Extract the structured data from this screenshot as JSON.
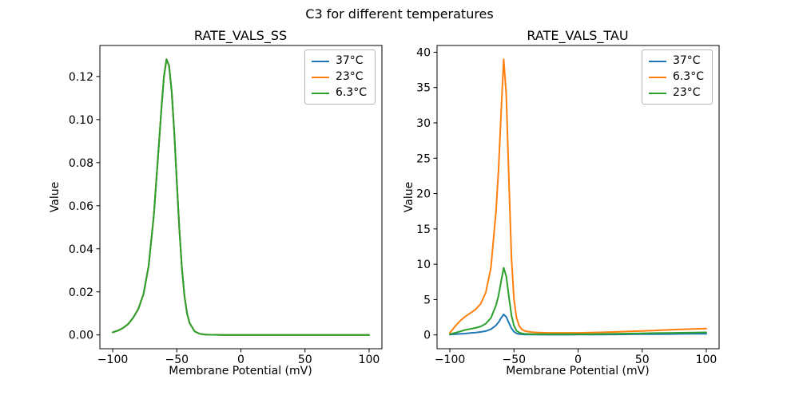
{
  "figure": {
    "title": "C3 for different temperatures"
  },
  "chart_data": [
    {
      "type": "line",
      "title": "RATE_VALS_SS",
      "xlabel": "Membrane Potential (mV)",
      "ylabel": "Value",
      "xlim": [
        -110,
        110
      ],
      "ylim": [
        -0.0064,
        0.1344
      ],
      "xticks": [
        -100,
        -50,
        0,
        50,
        100
      ],
      "xtick_labels": [
        "−100",
        "−50",
        "0",
        "50",
        "100"
      ],
      "yticks": [
        0,
        0.02,
        0.04,
        0.06,
        0.08,
        0.1,
        0.12
      ],
      "ytick_labels": [
        "0.00",
        "0.02",
        "0.04",
        "0.06",
        "0.08",
        "0.10",
        "0.12"
      ],
      "grid": false,
      "legend_position": "upper right",
      "overlap_note": "all three temperature curves coincide; peak 0.128 at -58 mV",
      "x": [
        -100,
        -96,
        -92,
        -88,
        -84,
        -80,
        -76,
        -72,
        -68,
        -64,
        -62,
        -60,
        -58,
        -56,
        -54,
        -52,
        -50,
        -48,
        -46,
        -44,
        -42,
        -40,
        -36,
        -32,
        -28,
        -24,
        -20,
        -15,
        -10,
        -5,
        0,
        10,
        20,
        30,
        40,
        50,
        60,
        70,
        80,
        90,
        100
      ],
      "series": [
        {
          "name": "37°C",
          "color": "#1f77b4",
          "values": [
            0.0012,
            0.002,
            0.0032,
            0.005,
            0.008,
            0.012,
            0.019,
            0.032,
            0.055,
            0.088,
            0.105,
            0.12,
            0.128,
            0.125,
            0.113,
            0.094,
            0.071,
            0.049,
            0.031,
            0.018,
            0.01,
            0.0055,
            0.0016,
            0.0005,
            0.0002,
            0.0001,
            0.0001,
            0,
            0,
            0,
            0,
            0,
            0,
            0,
            0,
            0,
            0,
            0,
            0,
            0,
            0
          ]
        },
        {
          "name": "23°C",
          "color": "#ff7f0e",
          "values": [
            0.0012,
            0.002,
            0.0032,
            0.005,
            0.008,
            0.012,
            0.019,
            0.032,
            0.055,
            0.088,
            0.105,
            0.12,
            0.128,
            0.125,
            0.113,
            0.094,
            0.071,
            0.049,
            0.031,
            0.018,
            0.01,
            0.0055,
            0.0016,
            0.0005,
            0.0002,
            0.0001,
            0.0001,
            0,
            0,
            0,
            0,
            0,
            0,
            0,
            0,
            0,
            0,
            0,
            0,
            0,
            0
          ]
        },
        {
          "name": "6.3°C",
          "color": "#2ca02c",
          "values": [
            0.0012,
            0.002,
            0.0032,
            0.005,
            0.008,
            0.012,
            0.019,
            0.032,
            0.055,
            0.088,
            0.105,
            0.12,
            0.128,
            0.125,
            0.113,
            0.094,
            0.071,
            0.049,
            0.031,
            0.018,
            0.01,
            0.0055,
            0.0016,
            0.0005,
            0.0002,
            0.0001,
            0.0001,
            0,
            0,
            0,
            0,
            0,
            0,
            0,
            0,
            0,
            0,
            0,
            0,
            0,
            0
          ]
        }
      ]
    },
    {
      "type": "line",
      "title": "RATE_VALS_TAU",
      "xlabel": "Membrane Potential (mV)",
      "ylabel": "Value",
      "xlim": [
        -110,
        110
      ],
      "ylim": [
        -1.95,
        40.95
      ],
      "xticks": [
        -100,
        -50,
        0,
        50,
        100
      ],
      "xtick_labels": [
        "−100",
        "−50",
        "0",
        "50",
        "100"
      ],
      "yticks": [
        0,
        5,
        10,
        15,
        20,
        25,
        30,
        35,
        40
      ],
      "ytick_labels": [
        "0",
        "5",
        "10",
        "15",
        "20",
        "25",
        "30",
        "35",
        "40"
      ],
      "grid": false,
      "legend_position": "upper right",
      "overlap_note": "peaks at -58 mV: 6.3°C ≈ 39, 23°C ≈ 9.5, 37°C ≈ 2.9",
      "x": [
        -100,
        -96,
        -92,
        -88,
        -84,
        -80,
        -76,
        -72,
        -68,
        -64,
        -62,
        -60,
        -58,
        -56,
        -54,
        -52,
        -50,
        -48,
        -46,
        -44,
        -42,
        -40,
        -36,
        -32,
        -28,
        -24,
        -20,
        -15,
        -10,
        -5,
        0,
        10,
        20,
        30,
        40,
        50,
        60,
        70,
        80,
        90,
        100
      ],
      "series": [
        {
          "name": "37°C",
          "color": "#1f77b4",
          "values": [
            0.05,
            0.1,
            0.15,
            0.2,
            0.27,
            0.33,
            0.42,
            0.55,
            0.8,
            1.35,
            1.8,
            2.4,
            2.9,
            2.55,
            1.7,
            0.95,
            0.45,
            0.22,
            0.13,
            0.09,
            0.07,
            0.06,
            0.05,
            0.05,
            0.04,
            0.04,
            0.04,
            0.04,
            0.04,
            0.04,
            0.05,
            0.05,
            0.06,
            0.07,
            0.09,
            0.1,
            0.12,
            0.13,
            0.15,
            0.16,
            0.17
          ]
        },
        {
          "name": "6.3°C",
          "color": "#ff7f0e",
          "values": [
            0.3,
            1.2,
            2.0,
            2.6,
            3.1,
            3.6,
            4.4,
            6.0,
            9.5,
            17.5,
            23.5,
            31.5,
            39.0,
            34.0,
            22.0,
            11.0,
            5.0,
            2.4,
            1.3,
            0.8,
            0.6,
            0.5,
            0.4,
            0.35,
            0.32,
            0.3,
            0.3,
            0.3,
            0.3,
            0.3,
            0.3,
            0.33,
            0.37,
            0.43,
            0.5,
            0.57,
            0.64,
            0.71,
            0.78,
            0.84,
            0.9
          ]
        },
        {
          "name": "23°C",
          "color": "#2ca02c",
          "values": [
            0.1,
            0.3,
            0.5,
            0.7,
            0.85,
            1.0,
            1.2,
            1.6,
            2.4,
            4.2,
            5.6,
            7.6,
            9.5,
            8.3,
            5.4,
            2.8,
            1.3,
            0.6,
            0.35,
            0.22,
            0.17,
            0.15,
            0.12,
            0.11,
            0.1,
            0.1,
            0.1,
            0.1,
            0.1,
            0.1,
            0.11,
            0.12,
            0.14,
            0.17,
            0.2,
            0.23,
            0.26,
            0.29,
            0.31,
            0.34,
            0.36
          ]
        }
      ]
    }
  ]
}
